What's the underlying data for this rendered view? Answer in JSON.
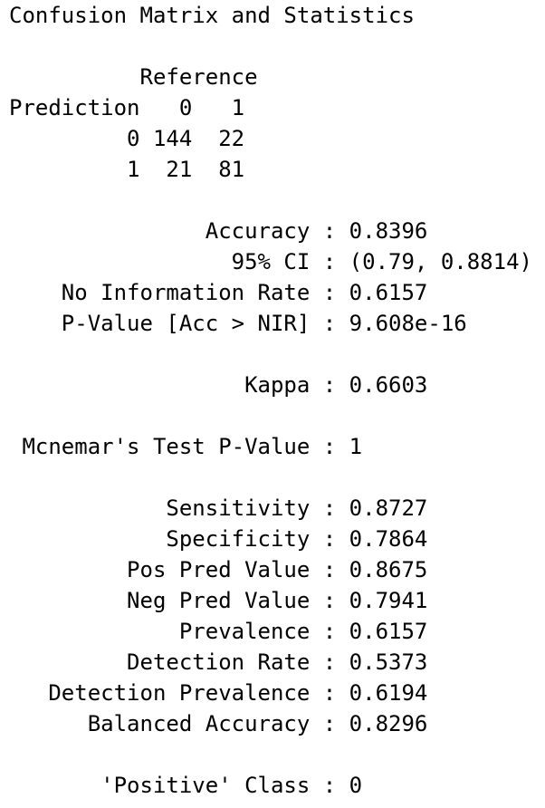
{
  "lines": {
    "title": "Confusion Matrix and Statistics",
    "reference_header": "          Reference",
    "prediction_header": "Prediction   0   1",
    "row_0": "         0 144  22",
    "row_1": "         1  21  81",
    "accuracy": "               Accuracy : 0.8396",
    "ci": "                 95% CI : (0.79, 0.8814)",
    "nir": "    No Information Rate : 0.6157",
    "pvalue": "    P-Value [Acc > NIR] : 9.608e-16",
    "kappa": "                  Kappa : 0.6603",
    "mcnemar": " Mcnemar's Test P-Value : 1",
    "sensitivity": "            Sensitivity : 0.8727",
    "specificity": "            Specificity : 0.7864",
    "pos_pred": "         Pos Pred Value : 0.8675",
    "neg_pred": "         Neg Pred Value : 0.7941",
    "prevalence": "             Prevalence : 0.6157",
    "detection_rate": "         Detection Rate : 0.5373",
    "detection_prevalence": "   Detection Prevalence : 0.6194",
    "balanced_accuracy": "      Balanced Accuracy : 0.8296",
    "positive_class": "       'Positive' Class : 0"
  }
}
